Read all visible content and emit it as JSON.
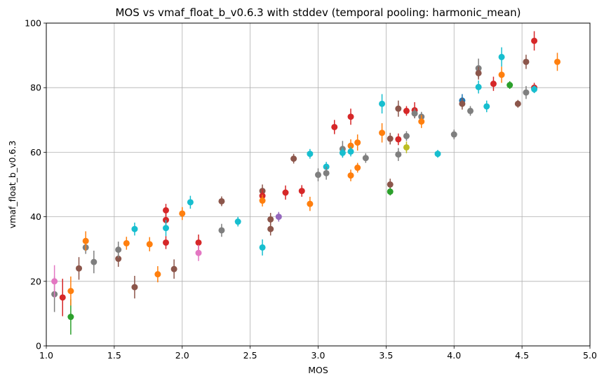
{
  "chart_data": {
    "type": "scatter",
    "title": "MOS vs vmaf_float_b_v0.6.3 with stddev (temporal pooling: harmonic_mean)",
    "xlabel": "MOS",
    "ylabel": "vmaf_float_b_v0.6.3",
    "xlim": [
      1.0,
      5.0
    ],
    "ylim": [
      0,
      100
    ],
    "xticks": [
      "1.0",
      "1.5",
      "2.0",
      "2.5",
      "3.0",
      "3.5",
      "4.0",
      "4.5",
      "5.0"
    ],
    "yticks": [
      "0",
      "20",
      "40",
      "60",
      "80",
      "100"
    ],
    "grid": true,
    "error_bars": "vertical, ± stddev",
    "colors": {
      "blue": "#1f77b4",
      "orange": "#ff7f0e",
      "green": "#2ca02c",
      "red": "#d62728",
      "purple": "#9467bd",
      "brown": "#8c564b",
      "pink": "#e377c2",
      "gray": "#7f7f7f",
      "olive": "#bcbd22",
      "cyan": "#17becf"
    },
    "points": [
      {
        "x": 1.06,
        "y": 16.0,
        "err": 5.5,
        "color": "gray"
      },
      {
        "x": 1.06,
        "y": 20.0,
        "err": 5.0,
        "color": "pink"
      },
      {
        "x": 1.12,
        "y": 15.0,
        "err": 5.8,
        "color": "red"
      },
      {
        "x": 1.18,
        "y": 9.0,
        "err": 5.5,
        "color": "green"
      },
      {
        "x": 1.18,
        "y": 17.0,
        "err": 4.5,
        "color": "orange"
      },
      {
        "x": 1.24,
        "y": 24.0,
        "err": 3.5,
        "color": "brown"
      },
      {
        "x": 1.29,
        "y": 30.5,
        "err": 2.0,
        "color": "gray"
      },
      {
        "x": 1.29,
        "y": 32.5,
        "err": 3.0,
        "color": "orange"
      },
      {
        "x": 1.35,
        "y": 26.0,
        "err": 3.5,
        "color": "gray"
      },
      {
        "x": 1.53,
        "y": 27.0,
        "err": 2.5,
        "color": "brown"
      },
      {
        "x": 1.53,
        "y": 29.8,
        "err": 2.5,
        "color": "gray"
      },
      {
        "x": 1.59,
        "y": 31.8,
        "err": 2.0,
        "color": "orange"
      },
      {
        "x": 1.65,
        "y": 36.2,
        "err": 2.0,
        "color": "cyan"
      },
      {
        "x": 1.65,
        "y": 18.2,
        "err": 3.5,
        "color": "brown"
      },
      {
        "x": 1.76,
        "y": 31.5,
        "err": 2.2,
        "color": "orange"
      },
      {
        "x": 1.82,
        "y": 22.2,
        "err": 2.5,
        "color": "orange"
      },
      {
        "x": 1.88,
        "y": 42.0,
        "err": 2.0,
        "color": "red"
      },
      {
        "x": 1.88,
        "y": 39.0,
        "err": 2.5,
        "color": "red"
      },
      {
        "x": 1.88,
        "y": 36.5,
        "err": 2.5,
        "color": "cyan"
      },
      {
        "x": 1.88,
        "y": 32.0,
        "err": 2.0,
        "color": "red"
      },
      {
        "x": 1.94,
        "y": 23.8,
        "err": 3.0,
        "color": "brown"
      },
      {
        "x": 2.0,
        "y": 41.0,
        "err": 2.0,
        "color": "orange"
      },
      {
        "x": 2.06,
        "y": 44.5,
        "err": 2.0,
        "color": "cyan"
      },
      {
        "x": 2.12,
        "y": 32.0,
        "err": 2.5,
        "color": "red"
      },
      {
        "x": 2.12,
        "y": 28.8,
        "err": 2.5,
        "color": "pink"
      },
      {
        "x": 2.29,
        "y": 44.8,
        "err": 1.5,
        "color": "brown"
      },
      {
        "x": 2.29,
        "y": 35.8,
        "err": 2.0,
        "color": "gray"
      },
      {
        "x": 2.41,
        "y": 38.5,
        "err": 1.5,
        "color": "cyan"
      },
      {
        "x": 2.59,
        "y": 48.0,
        "err": 2.0,
        "color": "brown"
      },
      {
        "x": 2.59,
        "y": 46.5,
        "err": 2.0,
        "color": "red"
      },
      {
        "x": 2.59,
        "y": 45.0,
        "err": 1.8,
        "color": "orange"
      },
      {
        "x": 2.59,
        "y": 30.5,
        "err": 2.5,
        "color": "cyan"
      },
      {
        "x": 2.65,
        "y": 39.2,
        "err": 2.0,
        "color": "brown"
      },
      {
        "x": 2.65,
        "y": 36.2,
        "err": 2.0,
        "color": "brown"
      },
      {
        "x": 2.71,
        "y": 40.0,
        "err": 1.5,
        "color": "purple"
      },
      {
        "x": 2.76,
        "y": 47.5,
        "err": 2.2,
        "color": "red"
      },
      {
        "x": 2.82,
        "y": 58.0,
        "err": 1.5,
        "color": "brown"
      },
      {
        "x": 2.88,
        "y": 48.0,
        "err": 1.8,
        "color": "red"
      },
      {
        "x": 2.94,
        "y": 59.5,
        "err": 1.5,
        "color": "cyan"
      },
      {
        "x": 2.94,
        "y": 44.0,
        "err": 2.2,
        "color": "orange"
      },
      {
        "x": 3.0,
        "y": 53.0,
        "err": 2.0,
        "color": "gray"
      },
      {
        "x": 3.06,
        "y": 55.5,
        "err": 1.5,
        "color": "cyan"
      },
      {
        "x": 3.06,
        "y": 53.5,
        "err": 2.0,
        "color": "gray"
      },
      {
        "x": 3.12,
        "y": 67.8,
        "err": 2.2,
        "color": "red"
      },
      {
        "x": 3.18,
        "y": 61.0,
        "err": 2.5,
        "color": "gray"
      },
      {
        "x": 3.18,
        "y": 59.8,
        "err": 1.5,
        "color": "cyan"
      },
      {
        "x": 3.24,
        "y": 71.0,
        "err": 2.5,
        "color": "red"
      },
      {
        "x": 3.24,
        "y": 62.0,
        "err": 2.0,
        "color": "orange"
      },
      {
        "x": 3.24,
        "y": 60.2,
        "err": 1.5,
        "color": "cyan"
      },
      {
        "x": 3.24,
        "y": 52.8,
        "err": 1.8,
        "color": "orange"
      },
      {
        "x": 3.29,
        "y": 63.0,
        "err": 2.5,
        "color": "orange"
      },
      {
        "x": 3.29,
        "y": 55.2,
        "err": 1.5,
        "color": "orange"
      },
      {
        "x": 3.35,
        "y": 58.2,
        "err": 1.5,
        "color": "gray"
      },
      {
        "x": 3.47,
        "y": 75.0,
        "err": 3.0,
        "color": "cyan"
      },
      {
        "x": 3.47,
        "y": 66.0,
        "err": 3.0,
        "color": "orange"
      },
      {
        "x": 3.53,
        "y": 64.2,
        "err": 1.8,
        "color": "brown"
      },
      {
        "x": 3.53,
        "y": 50.0,
        "err": 1.8,
        "color": "brown"
      },
      {
        "x": 3.53,
        "y": 47.8,
        "err": 1.2,
        "color": "green"
      },
      {
        "x": 3.59,
        "y": 73.5,
        "err": 2.5,
        "color": "brown"
      },
      {
        "x": 3.59,
        "y": 64.0,
        "err": 1.8,
        "color": "red"
      },
      {
        "x": 3.59,
        "y": 59.3,
        "err": 2.0,
        "color": "gray"
      },
      {
        "x": 3.65,
        "y": 72.8,
        "err": 1.5,
        "color": "red"
      },
      {
        "x": 3.65,
        "y": 65.0,
        "err": 1.5,
        "color": "gray"
      },
      {
        "x": 3.65,
        "y": 61.5,
        "err": 1.8,
        "color": "olive"
      },
      {
        "x": 3.71,
        "y": 73.0,
        "err": 2.5,
        "color": "red"
      },
      {
        "x": 3.71,
        "y": 72.0,
        "err": 1.5,
        "color": "gray"
      },
      {
        "x": 3.76,
        "y": 71.0,
        "err": 1.5,
        "color": "gray"
      },
      {
        "x": 3.76,
        "y": 69.5,
        "err": 2.0,
        "color": "orange"
      },
      {
        "x": 3.88,
        "y": 59.5,
        "err": 1.2,
        "color": "cyan"
      },
      {
        "x": 4.0,
        "y": 65.5,
        "err": 1.5,
        "color": "gray"
      },
      {
        "x": 4.06,
        "y": 76.0,
        "err": 2.0,
        "color": "blue"
      },
      {
        "x": 4.06,
        "y": 75.0,
        "err": 1.8,
        "color": "brown"
      },
      {
        "x": 4.12,
        "y": 72.8,
        "err": 1.5,
        "color": "gray"
      },
      {
        "x": 4.18,
        "y": 86.0,
        "err": 3.0,
        "color": "gray"
      },
      {
        "x": 4.18,
        "y": 84.5,
        "err": 2.0,
        "color": "brown"
      },
      {
        "x": 4.18,
        "y": 80.2,
        "err": 2.0,
        "color": "cyan"
      },
      {
        "x": 4.24,
        "y": 74.2,
        "err": 1.8,
        "color": "cyan"
      },
      {
        "x": 4.29,
        "y": 81.2,
        "err": 2.2,
        "color": "red"
      },
      {
        "x": 4.35,
        "y": 89.5,
        "err": 3.0,
        "color": "cyan"
      },
      {
        "x": 4.35,
        "y": 84.0,
        "err": 2.5,
        "color": "orange"
      },
      {
        "x": 4.41,
        "y": 80.8,
        "err": 1.2,
        "color": "green"
      },
      {
        "x": 4.47,
        "y": 75.0,
        "err": 1.2,
        "color": "brown"
      },
      {
        "x": 4.53,
        "y": 88.0,
        "err": 2.2,
        "color": "brown"
      },
      {
        "x": 4.53,
        "y": 78.5,
        "err": 2.0,
        "color": "gray"
      },
      {
        "x": 4.59,
        "y": 94.5,
        "err": 3.0,
        "color": "red"
      },
      {
        "x": 4.59,
        "y": 80.0,
        "err": 1.5,
        "color": "red"
      },
      {
        "x": 4.59,
        "y": 79.5,
        "err": 1.2,
        "color": "cyan"
      },
      {
        "x": 4.76,
        "y": 88.0,
        "err": 2.8,
        "color": "orange"
      }
    ]
  }
}
